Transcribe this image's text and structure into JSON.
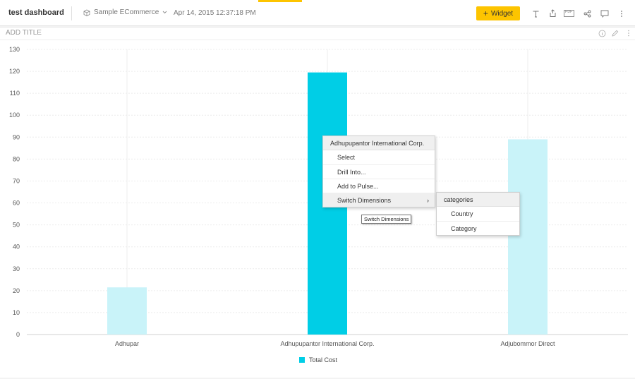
{
  "header": {
    "dashboard_title": "test dashboard",
    "datasource": "Sample ECommerce",
    "timestamp": "Apr 14, 2015 12:37:18 PM",
    "widget_button": "Widget",
    "widget_button_plus": "+",
    "icons": [
      "text-icon",
      "export-icon",
      "pdf-icon",
      "share-icon",
      "comment-icon",
      "more-vertical-icon"
    ],
    "accent_color": "#fdc400"
  },
  "widget": {
    "title": "ADD TITLE",
    "icons": [
      "info-icon",
      "edit-icon",
      "more-vertical-icon"
    ]
  },
  "chart_data": {
    "type": "bar",
    "categories": [
      "Adhupar",
      "Adhupupantor International Corp.",
      "Adjubommor Direct"
    ],
    "series": [
      {
        "name": "Total Cost",
        "values": [
          21.5,
          119.5,
          89
        ],
        "color": "#00cee6",
        "faded_color": "#c9f3f9",
        "highlighted_index": 1
      }
    ],
    "ylim": [
      0,
      130
    ],
    "yticks": [
      0,
      10,
      20,
      30,
      40,
      50,
      60,
      70,
      80,
      90,
      100,
      110,
      120,
      130
    ],
    "grid": true,
    "legend_position": "bottom"
  },
  "legend": {
    "label": "Total Cost"
  },
  "context_menu": {
    "header": "Adhupupantor International Corp.",
    "items": [
      "Select",
      "Drill Into...",
      "Add to Pulse...",
      "Switch Dimensions"
    ],
    "submenu_arrow": "›"
  },
  "submenu": {
    "header": "categories",
    "items": [
      "Country",
      "Category"
    ]
  },
  "tooltip": {
    "text": "Switch Dimensions"
  },
  "pdf_label": "PDF"
}
